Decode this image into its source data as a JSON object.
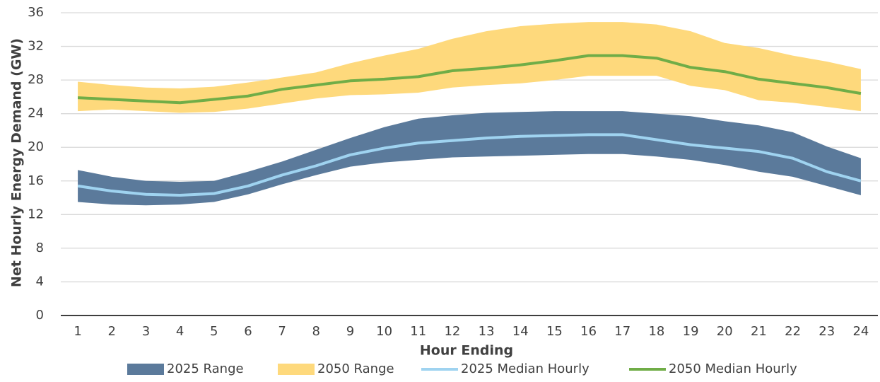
{
  "chart_data": {
    "type": "line",
    "x_label": "Hour Ending",
    "y_label": "Net Hourly Energy Demand (GW)",
    "x": [
      1,
      2,
      3,
      4,
      5,
      6,
      7,
      8,
      9,
      10,
      11,
      12,
      13,
      14,
      15,
      16,
      17,
      18,
      19,
      20,
      21,
      22,
      23,
      24
    ],
    "xlim": [
      0.5,
      24.5
    ],
    "xticks": [
      1,
      2,
      3,
      4,
      5,
      6,
      7,
      8,
      9,
      10,
      11,
      12,
      13,
      14,
      15,
      16,
      17,
      18,
      19,
      20,
      21,
      22,
      23,
      24
    ],
    "ylim": [
      0,
      36
    ],
    "yticks": [
      0,
      4,
      8,
      12,
      16,
      20,
      24,
      28,
      32,
      36
    ],
    "grid": true,
    "legend": "bottom",
    "series": [
      {
        "name": "2025 Range",
        "kind": "band",
        "color": "#5b7a9b",
        "low": [
          13.5,
          13.2,
          13.1,
          13.2,
          13.5,
          14.4,
          15.6,
          16.7,
          17.7,
          18.2,
          18.5,
          18.8,
          18.9,
          19.0,
          19.1,
          19.2,
          19.2,
          18.9,
          18.5,
          17.9,
          17.1,
          16.5,
          15.4,
          14.3
        ],
        "high": [
          17.3,
          16.5,
          16.0,
          15.9,
          16.0,
          17.1,
          18.3,
          19.7,
          21.1,
          22.4,
          23.4,
          23.8,
          24.1,
          24.2,
          24.3,
          24.3,
          24.3,
          24.0,
          23.7,
          23.1,
          22.6,
          21.8,
          20.1,
          18.7
        ]
      },
      {
        "name": "2050 Range",
        "kind": "band",
        "color": "#fed97c",
        "low": [
          24.3,
          24.5,
          24.3,
          24.1,
          24.2,
          24.6,
          25.2,
          25.8,
          26.2,
          26.3,
          26.5,
          27.1,
          27.4,
          27.6,
          28.0,
          28.5,
          28.5,
          28.5,
          27.3,
          26.8,
          25.6,
          25.3,
          24.8,
          24.3
        ],
        "high": [
          27.8,
          27.4,
          27.1,
          27.0,
          27.2,
          27.7,
          28.3,
          28.9,
          30.0,
          30.9,
          31.7,
          32.9,
          33.8,
          34.4,
          34.7,
          34.9,
          34.9,
          34.6,
          33.8,
          32.4,
          31.8,
          30.9,
          30.2,
          29.3
        ]
      },
      {
        "name": "2025 Median Hourly",
        "kind": "line",
        "color": "#9fd3f0",
        "values": [
          15.4,
          14.8,
          14.4,
          14.3,
          14.5,
          15.4,
          16.7,
          17.8,
          19.1,
          19.9,
          20.5,
          20.8,
          21.1,
          21.3,
          21.4,
          21.5,
          21.5,
          20.9,
          20.3,
          19.9,
          19.5,
          18.7,
          17.1,
          16.0
        ]
      },
      {
        "name": "2050 Median Hourly",
        "kind": "line",
        "color": "#70ad47",
        "values": [
          25.9,
          25.7,
          25.5,
          25.3,
          25.7,
          26.1,
          26.9,
          27.4,
          27.9,
          28.1,
          28.4,
          29.1,
          29.4,
          29.8,
          30.3,
          30.9,
          30.9,
          30.6,
          29.5,
          29.0,
          28.1,
          27.6,
          27.1,
          26.4
        ]
      }
    ]
  }
}
